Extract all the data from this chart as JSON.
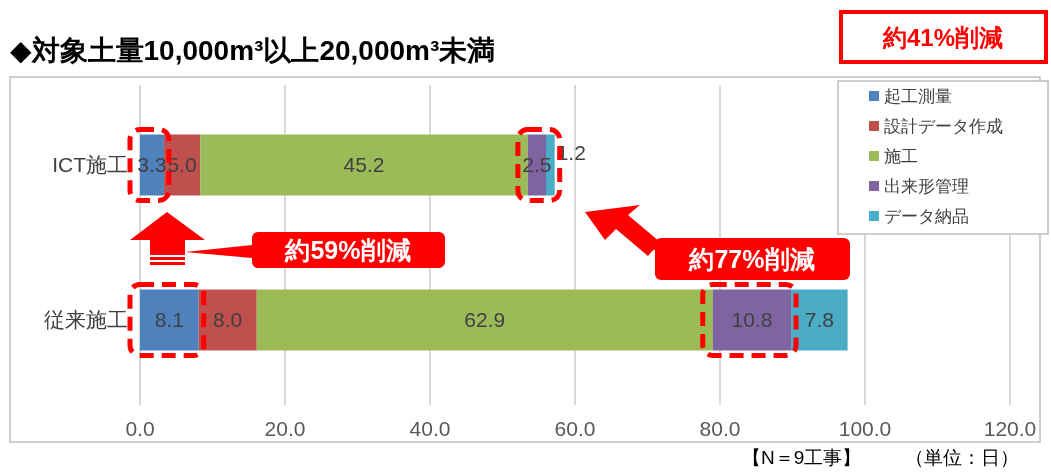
{
  "chart_data": {
    "type": "bar",
    "orientation": "horizontal",
    "stacked": true,
    "title": "◆対象土量10,000m³以上20,000m³未満",
    "categories": [
      "ICT施工",
      "従来施工"
    ],
    "series": [
      {
        "name": "起工測量",
        "color": "#4f81bd",
        "values": [
          3.3,
          8.1
        ],
        "value_labels": [
          "3.3",
          "8.1"
        ]
      },
      {
        "name": "設計データ作成",
        "color": "#c0504d",
        "values": [
          5.0,
          8.0
        ],
        "value_labels": [
          "5.0",
          "8.0"
        ]
      },
      {
        "name": "施工",
        "color": "#9bbb59",
        "values": [
          45.2,
          62.9
        ],
        "value_labels": [
          "45.2",
          "62.9"
        ]
      },
      {
        "name": "出来形管理",
        "color": "#8064a2",
        "values": [
          2.5,
          10.8
        ],
        "value_labels": [
          "2.5",
          "10.8"
        ]
      },
      {
        "name": "データ納品",
        "color": "#4bacc6",
        "values": [
          1.2,
          7.8
        ],
        "value_labels": [
          "1.2",
          "7.8"
        ]
      }
    ],
    "xlim": [
      0,
      120
    ],
    "xticks": [
      {
        "value": 0,
        "label": "0.0"
      },
      {
        "value": 20,
        "label": "20.0"
      },
      {
        "value": 40,
        "label": "40.0"
      },
      {
        "value": 60,
        "label": "60.0"
      },
      {
        "value": 80,
        "label": "80.0"
      },
      {
        "value": 100,
        "label": "100.0"
      },
      {
        "value": 120,
        "label": "120.0"
      }
    ],
    "grid": "x",
    "legend": "top right",
    "annotations": [
      "約41%削減",
      "約59%削減",
      "約77%削減",
      "【N＝9工事】",
      "（単位：日）"
    ]
  }
}
